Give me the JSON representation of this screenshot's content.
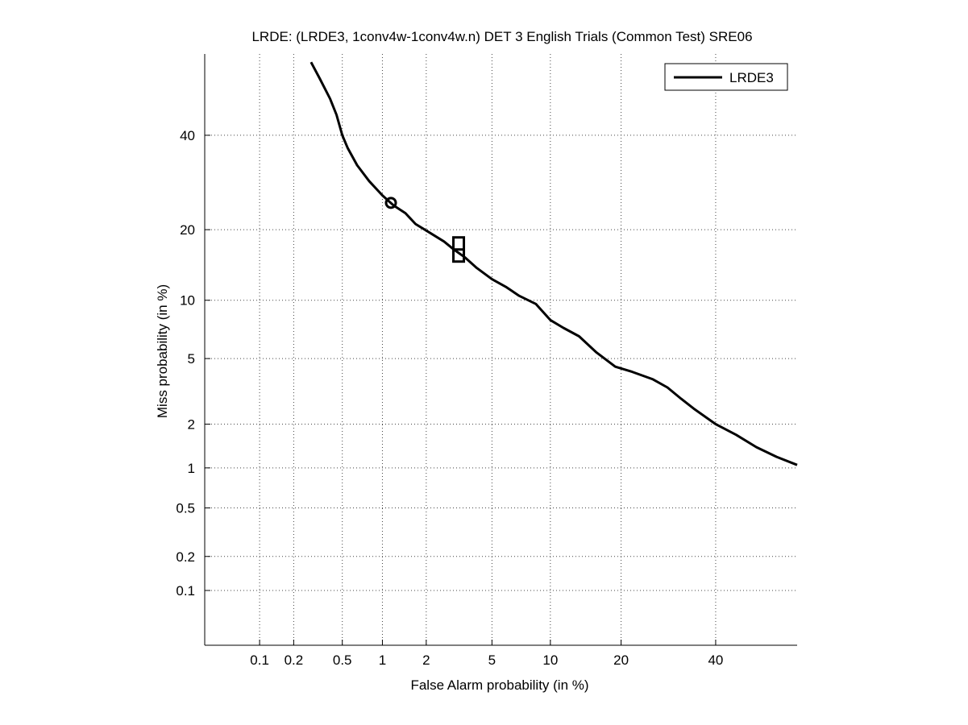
{
  "chart_data": {
    "type": "line",
    "title": "LRDE: (LRDE3, 1conv4w-1conv4w.n) DET 3 English Trials (Common Test) SRE06",
    "xlabel": "False Alarm probability (in %)",
    "ylabel": "Miss probability (in %)",
    "x_scale": "normal-deviate (probit)",
    "y_scale": "normal-deviate (probit)",
    "xlim": [
      0.03,
      60
    ],
    "ylim": [
      0.03,
      60
    ],
    "x_ticks": [
      0.1,
      0.2,
      0.5,
      1,
      2,
      5,
      10,
      20,
      40
    ],
    "x_tick_labels": [
      "0.1",
      "0.2",
      "0.5",
      "1",
      "2",
      "5",
      "10",
      "20",
      "40"
    ],
    "y_ticks": [
      0.1,
      0.2,
      0.5,
      1,
      2,
      5,
      10,
      20,
      40
    ],
    "y_tick_labels": [
      "0.1",
      "0.2",
      "0.5",
      "1",
      "2",
      "5",
      "10",
      "20",
      "40"
    ],
    "grid": true,
    "legend_position": "top-right",
    "series": [
      {
        "name": "LRDE3",
        "color": "#000000",
        "x": [
          0.28,
          0.33,
          0.4,
          0.45,
          0.5,
          0.55,
          0.65,
          0.8,
          1.0,
          1.2,
          1.45,
          1.7,
          2.1,
          2.6,
          3.0,
          3.5,
          4.1,
          5.0,
          6.0,
          7.0,
          8.5,
          10.0,
          11.5,
          13.5,
          16.0,
          19.0,
          22.0,
          26.0,
          29.0,
          32.0,
          35.0,
          40.0,
          45.0,
          50.0,
          55.0,
          60.0
        ],
        "y": [
          58,
          54,
          49,
          45,
          40,
          37,
          33,
          29.5,
          26.5,
          24.5,
          23,
          21,
          19.5,
          18,
          16.7,
          15.5,
          14,
          12.5,
          11.5,
          10.5,
          9.6,
          8,
          7.3,
          6.6,
          5.4,
          4.5,
          4.2,
          3.8,
          3.4,
          2.9,
          2.5,
          2.0,
          1.7,
          1.4,
          1.2,
          1.05
        ]
      }
    ],
    "markers": [
      {
        "shape": "circle",
        "x": 1.15,
        "y": 25
      },
      {
        "shape": "box",
        "x": 3.2,
        "y": 16.6
      }
    ]
  }
}
